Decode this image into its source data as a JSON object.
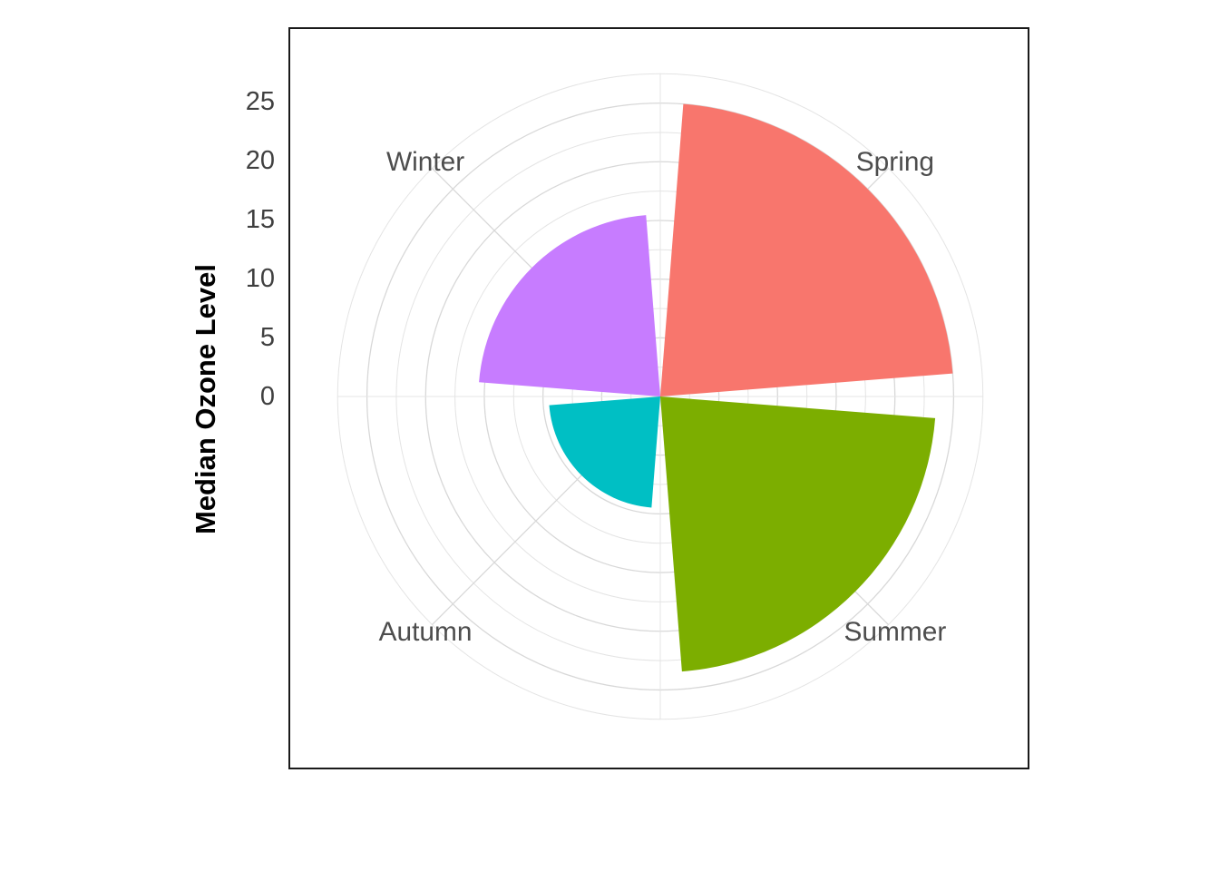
{
  "y_axis": {
    "title": "Median Ozone Level",
    "breaks": [
      0,
      5,
      10,
      15,
      20,
      25
    ]
  },
  "chart_data": {
    "type": "bar",
    "coord": "polar",
    "title": "",
    "ylabel": "Median Ozone Level",
    "categories": [
      "Spring",
      "Summer",
      "Autumn",
      "Winter"
    ],
    "values": [
      25,
      23.5,
      9.5,
      15.5
    ],
    "colors": [
      "#F8766D",
      "#7CAE00",
      "#00BFC4",
      "#C77CFF"
    ],
    "category_angles_deg": [
      45,
      135,
      225,
      315
    ],
    "minor_spoke_angles_deg": [
      0,
      90,
      180,
      270
    ],
    "bar_angular_width_deg": 81,
    "start": "north",
    "direction": "clockwise",
    "grid": true,
    "radial_axis": {
      "min": 0,
      "max": 28,
      "major_breaks": [
        5,
        10,
        15,
        20,
        25
      ],
      "minor_breaks": [
        2.5,
        7.5,
        12.5,
        17.5,
        22.5,
        27.5
      ]
    },
    "legend": "none"
  },
  "style": {
    "background_color": "#ffffff",
    "panel_border_color": "#1a1a1a",
    "grid_major_color": "#d8d8d8",
    "grid_minor_color": "#e4e4e4",
    "axis_text_color": "#404040",
    "category_label_color": "#4d4d4d",
    "y_title_color": "#000000"
  }
}
